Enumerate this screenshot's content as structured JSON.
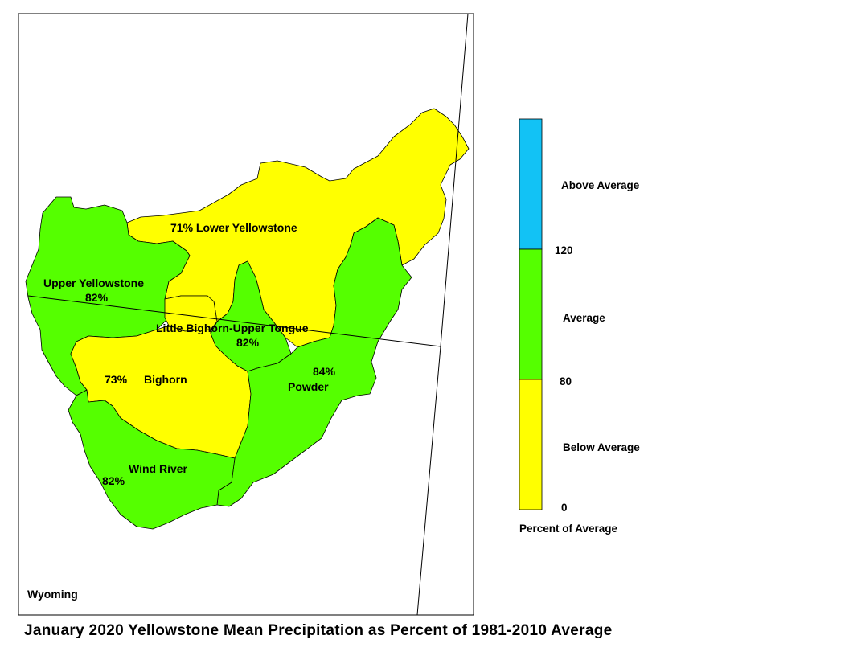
{
  "title": "January 2020 Yellowstone Mean Precipitation as Percent of 1981-2010 Average",
  "state_label": "Wyoming",
  "colors": {
    "above": "#12C2F5",
    "average": "#55FF00",
    "below": "#FFFF00",
    "border": "#000000",
    "background": "#FFFFFF"
  },
  "basins": [
    {
      "name": "Lower Yellowstone",
      "percent": "71%",
      "category": "below"
    },
    {
      "name": "Upper Yellowstone",
      "percent": "82%",
      "category": "average"
    },
    {
      "name": "Little Bighorn-Upper Tongue",
      "percent": "82%",
      "category": "average"
    },
    {
      "name": "Bighorn",
      "percent": "73%",
      "category": "below"
    },
    {
      "name": "Powder",
      "percent": "84%",
      "category": "average"
    },
    {
      "name": "Wind River",
      "percent": "82%",
      "category": "average"
    }
  ],
  "labels": {
    "lower_yellowstone": "71% Lower Yellowstone",
    "upper_yellowstone_name": "Upper Yellowstone",
    "upper_yellowstone_pct": "82%",
    "little_bighorn_name": "Little Bighorn-Upper Tongue",
    "little_bighorn_pct": "82%",
    "bighorn_pct": "73%",
    "bighorn_name": "Bighorn",
    "powder_pct": "84%",
    "powder_name": "Powder",
    "wind_river_name": "Wind River",
    "wind_river_pct": "82%"
  },
  "legend": {
    "categories": [
      "Above Average",
      "Average",
      "Below Average"
    ],
    "ticks": [
      "120",
      "80",
      "0"
    ],
    "caption": "Percent of Average"
  }
}
